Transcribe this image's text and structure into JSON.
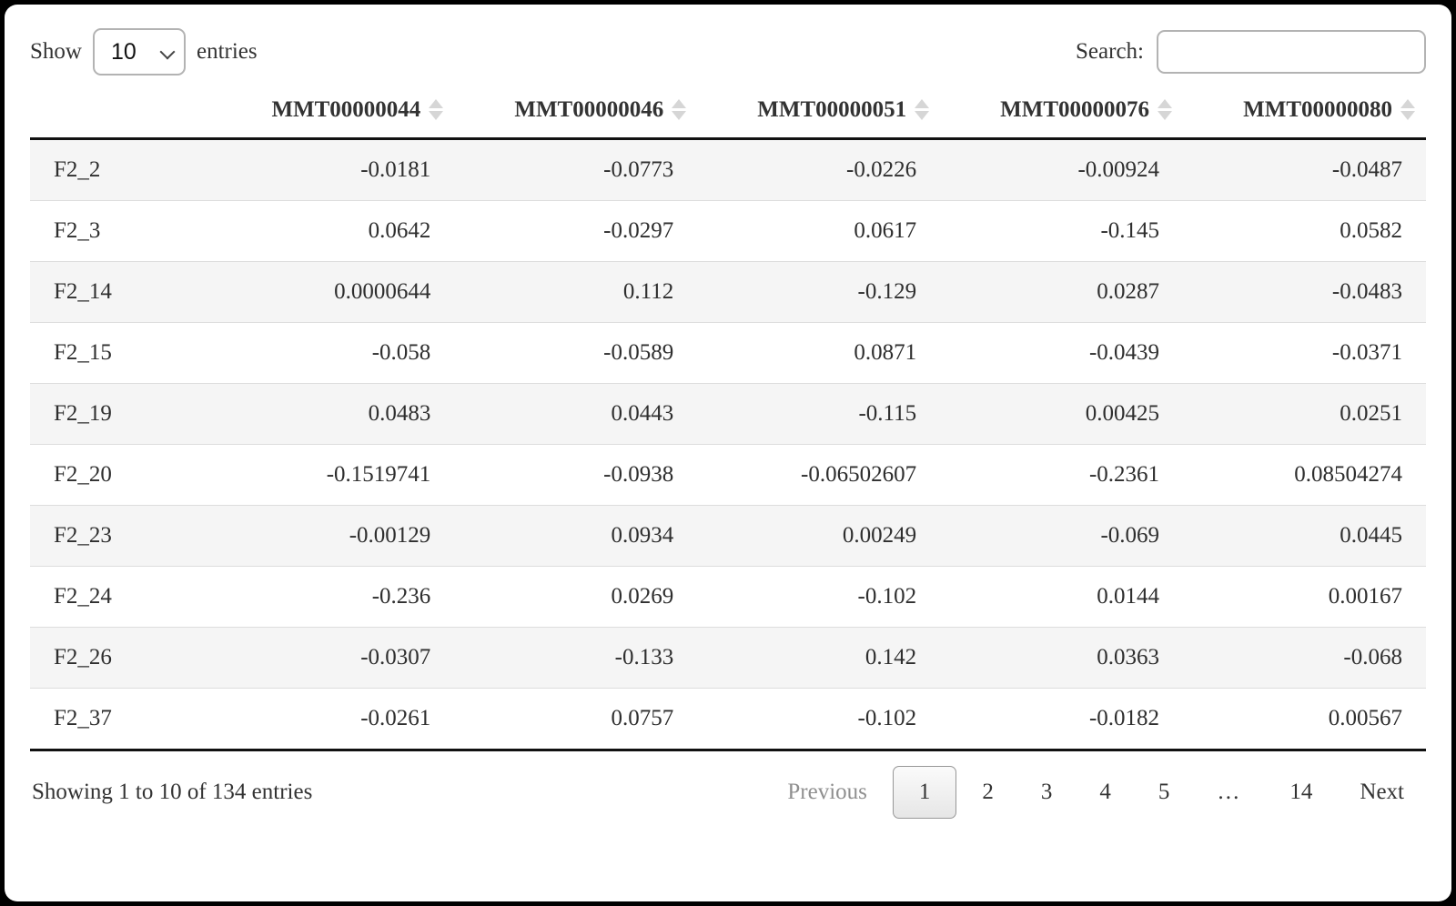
{
  "controls": {
    "show_label": "Show",
    "page_length": "10",
    "entries_label": "entries",
    "search_label": "Search:",
    "search_value": ""
  },
  "table": {
    "columns": [
      "MMT00000044",
      "MMT00000046",
      "MMT00000051",
      "MMT00000076",
      "MMT00000080"
    ],
    "rows": [
      {
        "name": "F2_2",
        "values": [
          "-0.0181",
          "-0.0773",
          "-0.0226",
          "-0.00924",
          "-0.0487"
        ]
      },
      {
        "name": "F2_3",
        "values": [
          "0.0642",
          "-0.0297",
          "0.0617",
          "-0.145",
          "0.0582"
        ]
      },
      {
        "name": "F2_14",
        "values": [
          "0.0000644",
          "0.112",
          "-0.129",
          "0.0287",
          "-0.0483"
        ]
      },
      {
        "name": "F2_15",
        "values": [
          "-0.058",
          "-0.0589",
          "0.0871",
          "-0.0439",
          "-0.0371"
        ]
      },
      {
        "name": "F2_19",
        "values": [
          "0.0483",
          "0.0443",
          "-0.115",
          "0.00425",
          "0.0251"
        ]
      },
      {
        "name": "F2_20",
        "values": [
          "-0.1519741",
          "-0.0938",
          "-0.06502607",
          "-0.2361",
          "0.08504274"
        ]
      },
      {
        "name": "F2_23",
        "values": [
          "-0.00129",
          "0.0934",
          "0.00249",
          "-0.069",
          "0.0445"
        ]
      },
      {
        "name": "F2_24",
        "values": [
          "-0.236",
          "0.0269",
          "-0.102",
          "0.0144",
          "0.00167"
        ]
      },
      {
        "name": "F2_26",
        "values": [
          "-0.0307",
          "-0.133",
          "0.142",
          "0.0363",
          "-0.068"
        ]
      },
      {
        "name": "F2_37",
        "values": [
          "-0.0261",
          "0.0757",
          "-0.102",
          "-0.0182",
          "0.00567"
        ]
      }
    ]
  },
  "footer": {
    "info": "Showing 1 to 10 of 134 entries",
    "pagination": {
      "previous_label": "Previous",
      "next_label": "Next",
      "pages": [
        "1",
        "2",
        "3",
        "4",
        "5",
        "…",
        "14"
      ],
      "current_page": "1",
      "ellipsis": "…"
    }
  },
  "colors": {
    "heavy_border": "#111111",
    "row_stripe": "#f5f5f5",
    "row_separator": "#dddddd",
    "sort_icon": "#d6d6d6",
    "disabled_text": "#8f8f8f",
    "current_page_border": "#979797",
    "input_border": "#b3b3b3"
  }
}
